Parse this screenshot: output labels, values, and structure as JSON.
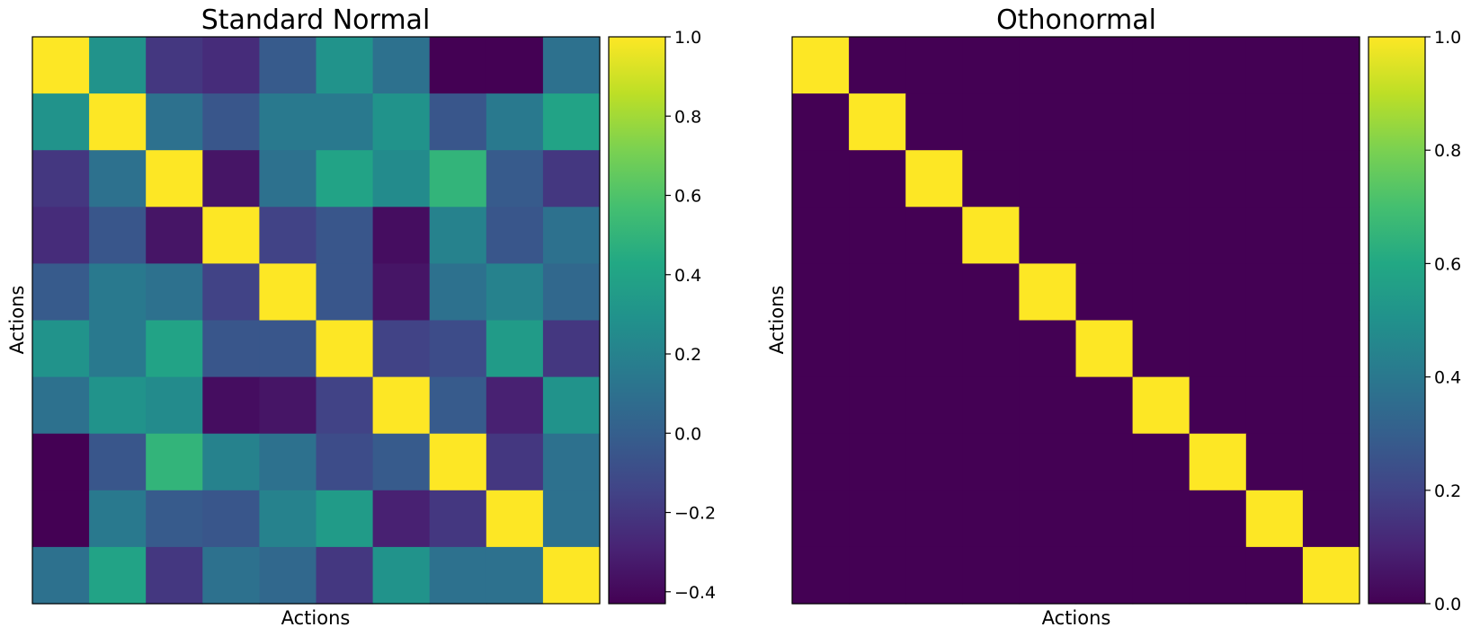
{
  "chart_data": [
    {
      "type": "heatmap",
      "title": "Standard Normal",
      "xlabel": "Actions",
      "ylabel": "Actions",
      "colormap": "viridis",
      "vmin": -0.43,
      "vmax": 1.0,
      "colorbar_ticks": [
        -0.4,
        -0.2,
        0.0,
        0.2,
        0.4,
        0.6,
        0.8,
        1.0
      ],
      "colorbar_tick_labels": [
        "−0.4",
        "−0.2",
        "0.0",
        "0.2",
        "0.4",
        "0.6",
        "0.8",
        "1.0"
      ],
      "values": [
        [
          1.0,
          0.3,
          -0.2,
          -0.25,
          -0.02,
          0.3,
          0.1,
          -0.43,
          -0.43,
          0.1
        ],
        [
          0.3,
          1.0,
          0.1,
          -0.05,
          0.15,
          0.15,
          0.3,
          -0.05,
          0.15,
          0.4
        ],
        [
          -0.2,
          0.1,
          1.0,
          -0.35,
          0.1,
          0.4,
          0.25,
          0.5,
          -0.02,
          -0.2
        ],
        [
          -0.25,
          -0.05,
          -0.35,
          1.0,
          -0.15,
          -0.05,
          -0.38,
          0.2,
          -0.05,
          0.1
        ],
        [
          -0.02,
          0.15,
          0.1,
          -0.15,
          1.0,
          -0.05,
          -0.35,
          0.1,
          0.2,
          0.05
        ],
        [
          0.3,
          0.15,
          0.4,
          -0.05,
          -0.05,
          1.0,
          -0.15,
          -0.1,
          0.35,
          -0.2
        ],
        [
          0.1,
          0.3,
          0.25,
          -0.38,
          -0.35,
          -0.15,
          1.0,
          -0.02,
          -0.3,
          0.3
        ],
        [
          -0.43,
          -0.05,
          0.5,
          0.2,
          0.1,
          -0.1,
          -0.02,
          1.0,
          -0.2,
          0.1
        ],
        [
          -0.43,
          0.15,
          -0.02,
          -0.05,
          0.2,
          0.35,
          -0.3,
          -0.2,
          1.0,
          0.1
        ],
        [
          0.1,
          0.4,
          -0.2,
          0.1,
          0.05,
          -0.2,
          0.3,
          0.1,
          0.1,
          1.0
        ]
      ]
    },
    {
      "type": "heatmap",
      "title": "Othonormal",
      "xlabel": "Actions",
      "ylabel": "Actions",
      "colormap": "viridis",
      "vmin": 0.0,
      "vmax": 1.0,
      "colorbar_ticks": [
        0.0,
        0.2,
        0.4,
        0.6,
        0.8,
        1.0
      ],
      "colorbar_tick_labels": [
        "0.0",
        "0.2",
        "0.4",
        "0.6",
        "0.8",
        "1.0"
      ],
      "values": [
        [
          1,
          0,
          0,
          0,
          0,
          0,
          0,
          0,
          0,
          0
        ],
        [
          0,
          1,
          0,
          0,
          0,
          0,
          0,
          0,
          0,
          0
        ],
        [
          0,
          0,
          1,
          0,
          0,
          0,
          0,
          0,
          0,
          0
        ],
        [
          0,
          0,
          0,
          1,
          0,
          0,
          0,
          0,
          0,
          0
        ],
        [
          0,
          0,
          0,
          0,
          1,
          0,
          0,
          0,
          0,
          0
        ],
        [
          0,
          0,
          0,
          0,
          0,
          1,
          0,
          0,
          0,
          0
        ],
        [
          0,
          0,
          0,
          0,
          0,
          0,
          1,
          0,
          0,
          0
        ],
        [
          0,
          0,
          0,
          0,
          0,
          0,
          0,
          1,
          0,
          0
        ],
        [
          0,
          0,
          0,
          0,
          0,
          0,
          0,
          0,
          1,
          0
        ],
        [
          0,
          0,
          0,
          0,
          0,
          0,
          0,
          0,
          0,
          1
        ]
      ]
    }
  ]
}
